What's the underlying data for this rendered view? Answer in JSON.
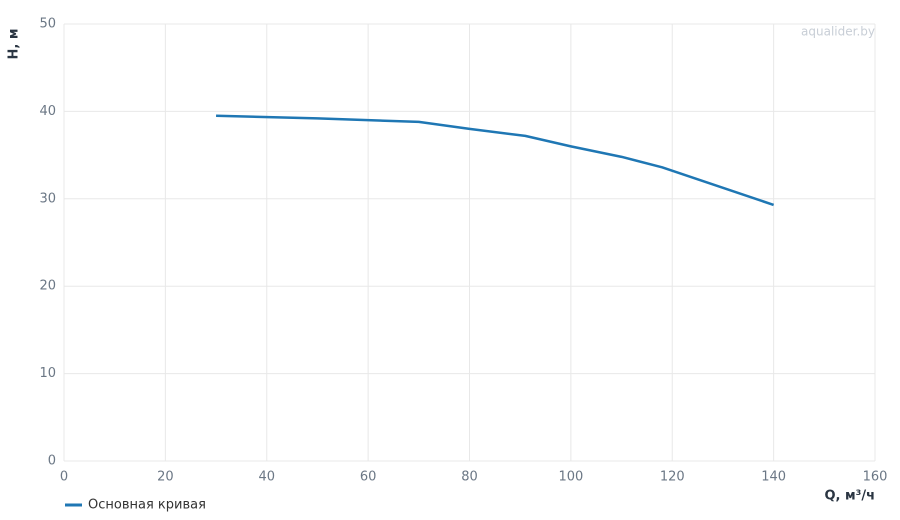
{
  "chart_data": {
    "type": "line",
    "x_label": "Q, м³/ч",
    "y_label": "H, м",
    "watermark": "aqualider.by",
    "series": [
      {
        "name": "Основная кривая",
        "color": "#1f77b4",
        "x": [
          30,
          50,
          70,
          80,
          91,
          100,
          110,
          118,
          140
        ],
        "values": [
          39.5,
          39.2,
          38.8,
          38.0,
          37.2,
          36.0,
          34.8,
          33.6,
          29.3
        ]
      }
    ],
    "xlim": [
      0,
      160
    ],
    "xticks": [
      0,
      20,
      40,
      60,
      80,
      100,
      120,
      140,
      160
    ],
    "ylim": [
      0,
      50
    ],
    "yticks": [
      0,
      10,
      20,
      30,
      40,
      50
    ],
    "grid": true
  }
}
